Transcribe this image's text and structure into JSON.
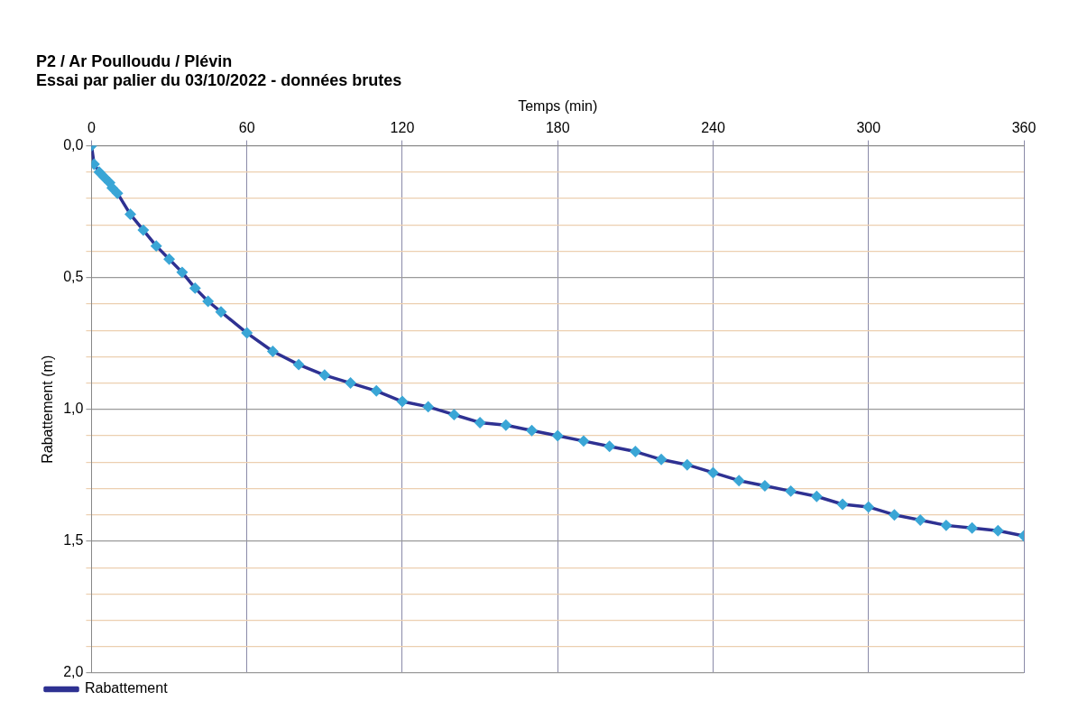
{
  "chart_data": {
    "type": "line",
    "title": "P2 / Ar Poulloudu / Plévin",
    "subtitle": "Essai par palier du 03/10/2022 - données brutes",
    "xlabel": "Temps (min)",
    "ylabel": "Rabattement (m)",
    "x": [
      0,
      1,
      3,
      5,
      7,
      8,
      10,
      15,
      20,
      25,
      30,
      35,
      40,
      45,
      50,
      60,
      70,
      80,
      90,
      100,
      110,
      120,
      130,
      140,
      150,
      160,
      170,
      180,
      190,
      200,
      210,
      220,
      230,
      240,
      250,
      260,
      270,
      280,
      290,
      300,
      310,
      320,
      330,
      340,
      350,
      360
    ],
    "series": [
      {
        "name": "Rabattement",
        "color": "#2e3192",
        "values": [
          0,
          0.07,
          0.1,
          0.12,
          0.14,
          0.16,
          0.18,
          0.26,
          0.32,
          0.38,
          0.43,
          0.48,
          0.54,
          0.59,
          0.63,
          0.71,
          0.78,
          0.83,
          0.87,
          0.9,
          0.93,
          0.97,
          0.99,
          1.02,
          1.05,
          1.06,
          1.08,
          1.1,
          1.12,
          1.14,
          1.16,
          1.19,
          1.21,
          1.24,
          1.27,
          1.29,
          1.31,
          1.33,
          1.36,
          1.37,
          1.4,
          1.42,
          1.44,
          1.45,
          1.46,
          1.48
        ]
      }
    ],
    "xlim": [
      0,
      360
    ],
    "xticks": [
      0,
      60,
      120,
      180,
      240,
      300,
      360
    ],
    "ylim": [
      2,
      0
    ],
    "yticks": [
      {
        "value": 0,
        "label": "0,0"
      },
      {
        "value": 0.1,
        "label": null
      },
      {
        "value": 0.2,
        "label": null
      },
      {
        "value": 0.3,
        "label": null
      },
      {
        "value": 0.4,
        "label": null
      },
      {
        "value": 0.5,
        "label": "0,5"
      },
      {
        "value": 0.6,
        "label": null
      },
      {
        "value": 0.7,
        "label": null
      },
      {
        "value": 0.8,
        "label": null
      },
      {
        "value": 0.9,
        "label": null
      },
      {
        "value": 1,
        "label": "1,0"
      },
      {
        "value": 1.1,
        "label": null
      },
      {
        "value": 1.2,
        "label": null
      },
      {
        "value": 1.3,
        "label": null
      },
      {
        "value": 1.4,
        "label": null
      },
      {
        "value": 1.5,
        "label": "1,5"
      },
      {
        "value": 1.6,
        "label": null
      },
      {
        "value": 1.7,
        "label": null
      },
      {
        "value": 1.8,
        "label": null
      },
      {
        "value": 1.9,
        "label": null
      },
      {
        "value": 2,
        "label": "2,0"
      }
    ],
    "grid": true,
    "legend": "bottom left",
    "marker": "diamond",
    "line_style": "solid"
  }
}
